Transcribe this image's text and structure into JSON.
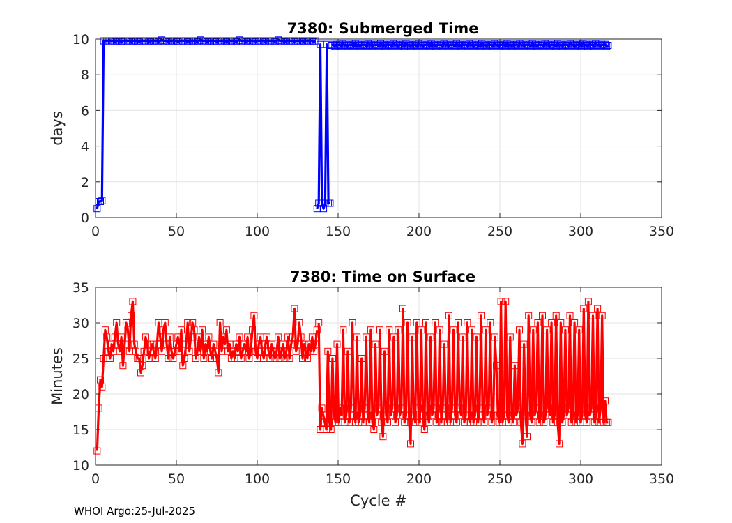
{
  "footer": "WHOI Argo:25-Jul-2025",
  "chart_data": [
    {
      "type": "line",
      "title": "7380: Submerged Time",
      "xlabel": "",
      "ylabel": "days",
      "xlim": [
        0,
        350
      ],
      "ylim": [
        0,
        10
      ],
      "xticks": [
        0,
        50,
        100,
        150,
        200,
        250,
        300,
        350
      ],
      "yticks": [
        0,
        2,
        4,
        6,
        8,
        10
      ],
      "grid": true,
      "color": "#0000ff",
      "marker": "square",
      "segments": [
        {
          "cycles": [
            1,
            136
          ],
          "values": [
            0.5,
            0.9,
            0.9,
            0.95,
            9.9,
            9.9,
            9.9,
            9.9,
            9.9,
            9.9,
            9.9,
            9.85,
            9.9,
            9.9,
            9.9,
            9.85,
            9.9,
            9.9,
            9.9,
            9.9,
            9.9,
            9.85,
            9.9,
            9.9,
            9.9,
            9.9,
            9.85,
            9.9,
            9.9,
            9.9,
            9.9,
            9.9,
            9.85,
            9.9,
            9.9,
            9.9,
            9.9,
            9.9,
            9.85,
            9.9,
            9.95,
            9.9,
            9.9,
            9.9,
            9.85,
            9.9,
            9.9,
            9.9,
            9.9,
            9.9,
            9.85,
            9.9,
            9.9,
            9.9,
            9.9,
            9.9,
            9.85,
            9.9,
            9.9,
            9.9,
            9.9,
            9.9,
            9.85,
            9.9,
            9.95,
            9.9,
            9.9,
            9.9,
            9.85,
            9.9,
            9.9,
            9.9,
            9.9,
            9.9,
            9.85,
            9.9,
            9.9,
            9.9,
            9.9,
            9.9,
            9.85,
            9.9,
            9.9,
            9.9,
            9.9,
            9.9,
            9.85,
            9.9,
            9.95,
            9.9,
            9.9,
            9.9,
            9.85,
            9.9,
            9.9,
            9.9,
            9.9,
            9.9,
            9.85,
            9.9,
            9.9,
            9.9,
            9.9,
            9.9,
            9.85,
            9.9,
            9.9,
            9.9,
            9.9,
            9.9,
            9.85,
            9.9,
            9.95,
            9.9,
            9.9,
            9.9,
            9.85,
            9.9,
            9.9,
            9.9,
            9.9,
            9.9,
            9.85,
            9.9,
            9.9,
            9.9,
            9.9,
            9.9,
            9.85,
            9.9,
            9.9,
            9.9,
            9.9,
            9.9,
            9.85,
            9.9
          ]
        },
        {
          "cycles": [
            137,
            145
          ],
          "values": [
            0.5,
            0.8,
            9.7,
            0.8,
            0.5,
            0.8,
            9.7,
            0.8,
            0.8
          ]
        },
        {
          "cycles": [
            146,
            317
          ],
          "values": [
            9.65,
            9.7,
            9.6,
            9.7,
            9.65,
            9.7,
            9.6,
            9.75,
            9.65,
            9.7,
            9.6,
            9.7,
            9.65,
            9.7,
            9.6,
            9.75,
            9.65,
            9.7,
            9.6,
            9.7,
            9.65,
            9.7,
            9.6,
            9.75,
            9.65,
            9.7,
            9.6,
            9.7,
            9.65,
            9.7,
            9.6,
            9.75,
            9.65,
            9.7,
            9.6,
            9.7,
            9.65,
            9.7,
            9.6,
            9.75,
            9.65,
            9.7,
            9.6,
            9.7,
            9.65,
            9.7,
            9.6,
            9.75,
            9.65,
            9.7,
            9.6,
            9.7,
            9.65,
            9.7,
            9.6,
            9.75,
            9.65,
            9.7,
            9.6,
            9.7,
            9.65,
            9.7,
            9.6,
            9.75,
            9.65,
            9.7,
            9.6,
            9.7,
            9.65,
            9.7,
            9.6,
            9.75,
            9.65,
            9.7,
            9.6,
            9.7,
            9.65,
            9.7,
            9.6,
            9.75,
            9.65,
            9.7,
            9.6,
            9.7,
            9.65,
            9.7,
            9.6,
            9.75,
            9.65,
            9.7,
            9.6,
            9.7,
            9.65,
            9.7,
            9.6,
            9.75,
            9.65,
            9.7,
            9.6,
            9.7,
            9.65,
            9.7,
            9.6,
            9.75,
            9.65,
            9.7,
            9.6,
            9.7,
            9.65,
            9.7,
            9.6,
            9.75,
            9.65,
            9.7,
            9.6,
            9.7,
            9.65,
            9.7,
            9.6,
            9.75,
            9.65,
            9.7,
            9.6,
            9.7,
            9.65,
            9.7,
            9.6,
            9.75,
            9.65,
            9.7,
            9.6,
            9.7,
            9.65,
            9.7,
            9.6,
            9.75,
            9.65,
            9.7,
            9.6,
            9.7,
            9.65,
            9.7,
            9.6,
            9.75,
            9.65,
            9.7,
            9.6,
            9.7,
            9.65,
            9.7,
            9.6,
            9.75,
            9.65,
            9.7,
            9.6,
            9.7,
            9.65,
            9.7,
            9.6,
            9.75,
            9.65,
            9.7,
            9.6,
            9.7,
            9.65,
            9.7,
            9.6,
            9.75,
            9.65,
            9.7,
            9.6,
            9.7,
            9.65,
            9.7,
            9.6,
            9.65
          ]
        }
      ]
    },
    {
      "type": "line",
      "title": "7380: Time on Surface",
      "xlabel": "Cycle #",
      "ylabel": "Minutes",
      "xlim": [
        0,
        350
      ],
      "ylim": [
        10,
        35
      ],
      "xticks": [
        0,
        50,
        100,
        150,
        200,
        250,
        300,
        350
      ],
      "yticks": [
        10,
        15,
        20,
        25,
        30,
        35
      ],
      "grid": true,
      "color": "#ff0000",
      "marker": "square",
      "segments": [
        {
          "cycles": [
            1,
            137
          ],
          "values": [
            12,
            18,
            22,
            21,
            25,
            29,
            28,
            26,
            25,
            27,
            26,
            28,
            30,
            27,
            26,
            28,
            24,
            27,
            30,
            29,
            26,
            31,
            33,
            27,
            26,
            25,
            25,
            23,
            24,
            26,
            28,
            27,
            25,
            26,
            27,
            26,
            25,
            27,
            30,
            28,
            26,
            29,
            30,
            27,
            25,
            28,
            26,
            25,
            26,
            27,
            28,
            26,
            29,
            24,
            25,
            27,
            30,
            26,
            28,
            30,
            29,
            25,
            26,
            28,
            26,
            29,
            25,
            27,
            26,
            28,
            26,
            25,
            27,
            26,
            25,
            23,
            30,
            26,
            28,
            27,
            29,
            26,
            27,
            25,
            26,
            25,
            27,
            26,
            28,
            25,
            26,
            27,
            26,
            28,
            25,
            26,
            29,
            31,
            26,
            25,
            27,
            28,
            26,
            25,
            27,
            28,
            26,
            25,
            27,
            26,
            25,
            26,
            28,
            25,
            26,
            27,
            25,
            26,
            28,
            25,
            27,
            28,
            32,
            26,
            27,
            30,
            28,
            25,
            27,
            26,
            25,
            27,
            26,
            28,
            26,
            27,
            29
          ]
        },
        {
          "cycles": [
            138,
            317
          ],
          "values": [
            30,
            15,
            18,
            17,
            16,
            15,
            26,
            16,
            15,
            25,
            17,
            16,
            27,
            16,
            18,
            17,
            29,
            16,
            17,
            26,
            16,
            18,
            30,
            17,
            16,
            28,
            16,
            17,
            25,
            16,
            18,
            28,
            17,
            16,
            29,
            16,
            15,
            27,
            17,
            18,
            29,
            16,
            14,
            26,
            17,
            16,
            29,
            17,
            18,
            28,
            16,
            17,
            29,
            17,
            18,
            32,
            16,
            17,
            30,
            16,
            13,
            28,
            17,
            16,
            30,
            18,
            16,
            29,
            17,
            15,
            30,
            17,
            16,
            28,
            17,
            18,
            30,
            16,
            17,
            29,
            16,
            18,
            27,
            17,
            16,
            31,
            16,
            18,
            29,
            17,
            16,
            30,
            18,
            17,
            28,
            16,
            17,
            30,
            17,
            16,
            29,
            16,
            17,
            28,
            16,
            18,
            31,
            17,
            16,
            29,
            17,
            18,
            30,
            16,
            17,
            28,
            24,
            17,
            16,
            33,
            16,
            17,
            33,
            17,
            16,
            28,
            17,
            16,
            24,
            17,
            18,
            29,
            16,
            13,
            27,
            17,
            14,
            31,
            17,
            16,
            29,
            17,
            18,
            30,
            16,
            17,
            31,
            16,
            17,
            29,
            18,
            17,
            30,
            16,
            17,
            31,
            16,
            13,
            30,
            16,
            17,
            29,
            17,
            18,
            31,
            16,
            17,
            30,
            16,
            17,
            29,
            16,
            17,
            32,
            17,
            16,
            33,
            17,
            18,
            31,
            16,
            17,
            32,
            16,
            18,
            31,
            16,
            19,
            16,
            16
          ]
        }
      ]
    }
  ]
}
